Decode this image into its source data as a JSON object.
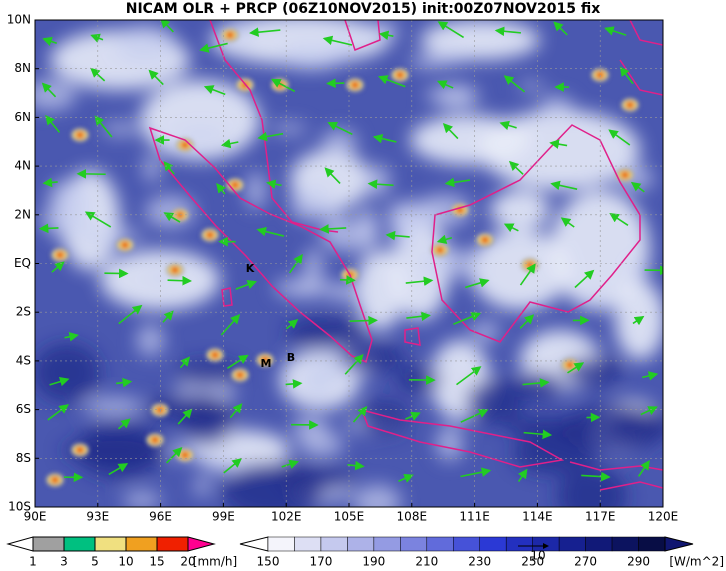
{
  "title": "NICAM OLR + PRCP (06Z10NOV2015) init:00Z07NOV2015 fix",
  "map": {
    "x_labels": [
      "90E",
      "93E",
      "96E",
      "99E",
      "102E",
      "105E",
      "108E",
      "111E",
      "114E",
      "117E",
      "120E"
    ],
    "y_labels": [
      "10N",
      "8N",
      "6N",
      "4N",
      "2N",
      "EQ",
      "2S",
      "4S",
      "6S",
      "8S",
      "10S"
    ],
    "places": [
      "K",
      "M",
      "B"
    ]
  },
  "precip_scale": {
    "labels": [
      "1",
      "3",
      "5",
      "10",
      "15",
      "20"
    ],
    "unit": "[mm/h]"
  },
  "olr_scale": {
    "labels": [
      "150",
      "170",
      "190",
      "210",
      "230",
      "250",
      "270",
      "290"
    ],
    "unit": "[W/m^2]"
  },
  "vector_ref": "10"
}
